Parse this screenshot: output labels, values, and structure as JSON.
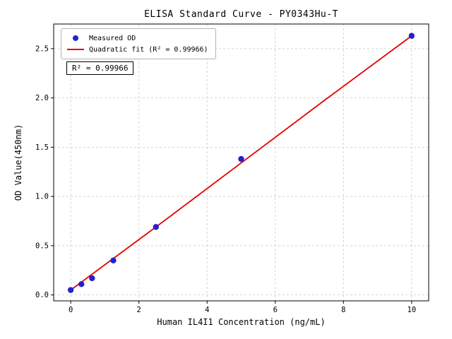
{
  "figure": {
    "title": "ELISA Standard Curve - PY0343Hu-T",
    "x_axis_label": "Human IL4I1 Concentration (ng/mL)",
    "y_axis_label": "OD Value(450nm)",
    "annotation": "R² = 0.99966"
  },
  "legend": {
    "position": "upper left",
    "items": [
      {
        "label": "Measured OD",
        "marker": "dot",
        "color": "#2222cc"
      },
      {
        "label": "Quadratic fit (R² = 0.99966)",
        "marker": "line",
        "color": "#e60000"
      }
    ]
  },
  "chart_data": {
    "type": "scatter",
    "title": "ELISA Standard Curve - PY0343Hu-T",
    "xlabel": "Human IL4I1 Concentration (ng/mL)",
    "ylabel": "OD Value(450nm)",
    "xlim": [
      -0.5,
      10.5
    ],
    "ylim": [
      -0.06,
      2.75
    ],
    "xticks": [
      0,
      2,
      4,
      6,
      8,
      10
    ],
    "xtick_labels": [
      "0",
      "2",
      "4",
      "6",
      "8",
      "10"
    ],
    "yticks": [
      0,
      0.5,
      1,
      1.5,
      2,
      2.5
    ],
    "ytick_labels": [
      "0.0",
      "0.5",
      "1.0",
      "1.5",
      "2.0",
      "2.5"
    ],
    "grid": true,
    "grid_color": "#c8c8c8",
    "axis_color": "#000000",
    "legend_position": "upper left",
    "r_squared": 0.99966,
    "series": [
      {
        "name": "Measured OD",
        "type": "scatter",
        "color": "#2222cc",
        "x": [
          0,
          0.313,
          0.625,
          1.25,
          2.5,
          5,
          10
        ],
        "y": [
          0.05,
          0.11,
          0.17,
          0.35,
          0.69,
          1.38,
          2.63
        ]
      },
      {
        "name": "Quadratic fit (R² = 0.99966)",
        "type": "line",
        "color": "#e60000",
        "x": [
          0,
          1.25,
          2.5,
          5,
          7.5,
          10
        ],
        "y": [
          0.05,
          0.37,
          0.69,
          1.34,
          1.99,
          2.63
        ]
      }
    ]
  }
}
